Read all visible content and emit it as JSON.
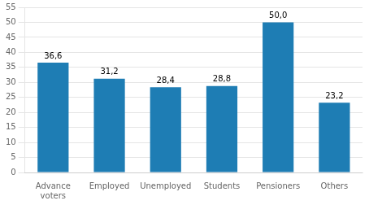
{
  "chart_data": {
    "type": "bar",
    "categories": [
      "Advance\nvoters",
      "Employed",
      "Unemployed",
      "Students",
      "Pensioners",
      "Others"
    ],
    "values": [
      36.6,
      31.2,
      28.4,
      28.8,
      50.0,
      23.2
    ],
    "value_labels": [
      "36,6",
      "31,2",
      "28,4",
      "28,8",
      "50,0",
      "23,2"
    ],
    "data_labels": true,
    "color": "#1e7db4",
    "ylim": [
      0,
      55
    ],
    "yticks": [
      0,
      5,
      10,
      15,
      20,
      25,
      30,
      35,
      40,
      45,
      50,
      55
    ],
    "grid": true
  }
}
